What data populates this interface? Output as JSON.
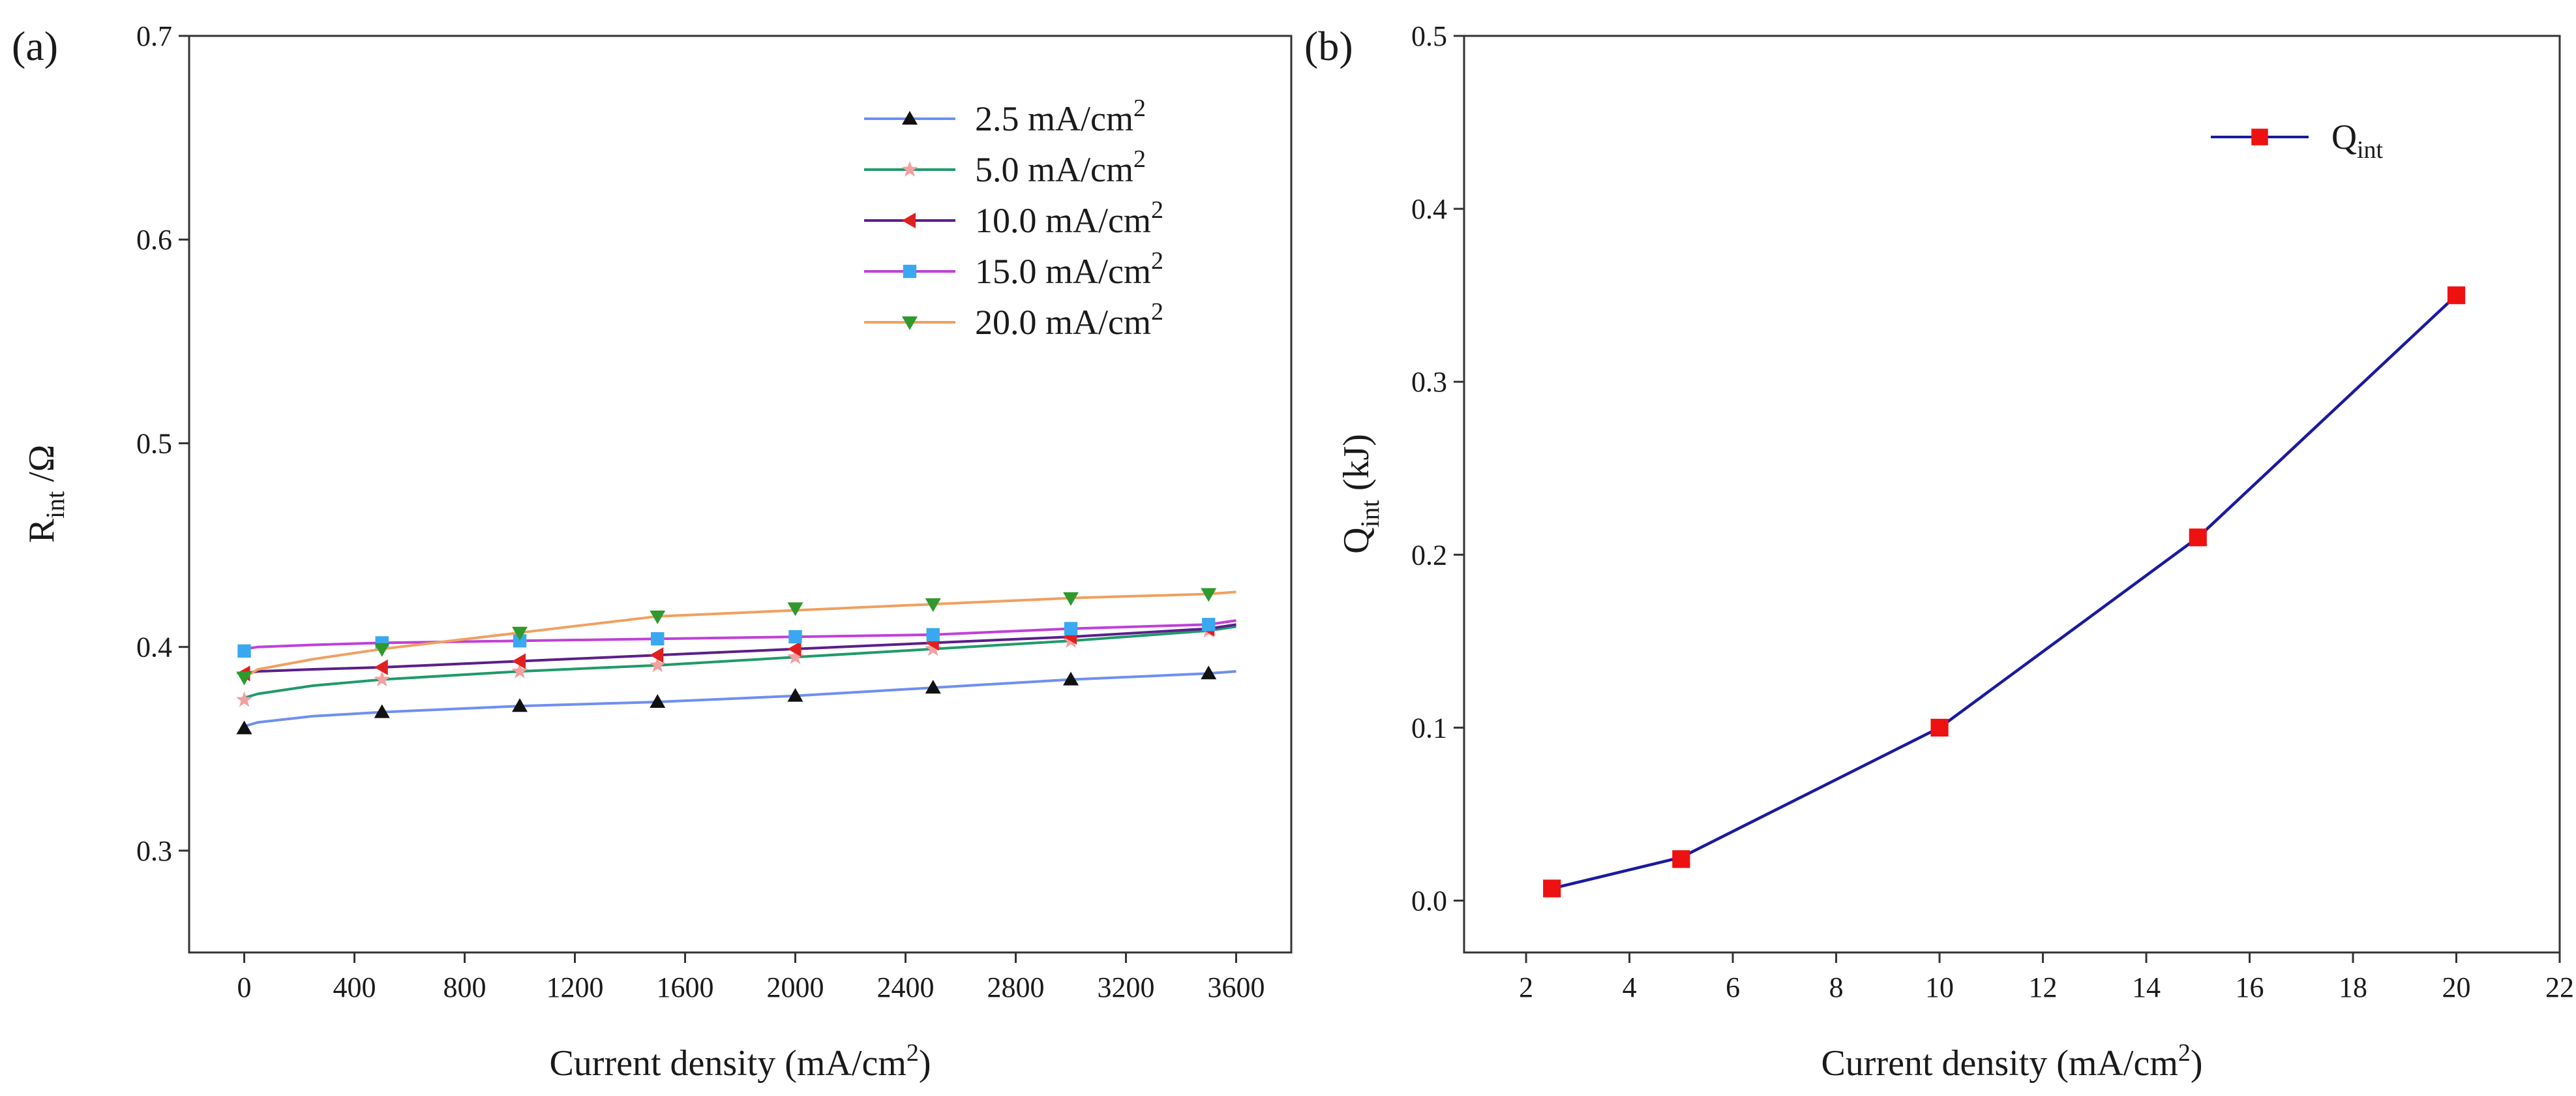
{
  "chart_data": [
    {
      "panel": "(a)",
      "type": "line",
      "xlabel": "Current density (mA/cm",
      "xlabel_sup": "2",
      "xlabel_tail": ")",
      "ylabel_main": "R",
      "ylabel_sub": "int",
      "ylabel_tail": " /Ω",
      "xlim": [
        -200,
        3800
      ],
      "ylim": [
        0.25,
        0.7
      ],
      "xticks": [
        0,
        400,
        800,
        1200,
        1600,
        2000,
        2400,
        2800,
        3200,
        3600
      ],
      "yticks": [
        0.3,
        0.4,
        0.5,
        0.6,
        0.7
      ],
      "legend_position": "top-right",
      "series": [
        {
          "name": "2.5 mA/cm",
          "sup": "2",
          "color": "#6f8ff0",
          "marker": "triangle-up",
          "marker_color": "#111111",
          "curve_x": [
            0,
            50,
            250,
            500,
            1000,
            1500,
            2000,
            2500,
            3000,
            3500,
            3600
          ],
          "curve_y": [
            0.361,
            0.363,
            0.366,
            0.368,
            0.371,
            0.373,
            0.376,
            0.38,
            0.384,
            0.387,
            0.388
          ],
          "points_x": [
            0,
            500,
            1000,
            1500,
            2000,
            2500,
            3000,
            3500
          ],
          "points_y": [
            0.36,
            0.368,
            0.371,
            0.373,
            0.376,
            0.38,
            0.384,
            0.387
          ]
        },
        {
          "name": "5.0 mA/cm",
          "sup": "2",
          "color": "#1f9a6a",
          "marker": "star",
          "marker_color": "#f2a0a0",
          "curve_x": [
            0,
            50,
            250,
            500,
            1000,
            1500,
            2000,
            2500,
            3000,
            3500,
            3600
          ],
          "curve_y": [
            0.375,
            0.377,
            0.381,
            0.384,
            0.388,
            0.391,
            0.395,
            0.399,
            0.403,
            0.408,
            0.41
          ],
          "points_x": [
            0,
            500,
            1000,
            1500,
            2000,
            2500,
            3000,
            3500
          ],
          "points_y": [
            0.374,
            0.384,
            0.388,
            0.391,
            0.395,
            0.399,
            0.403,
            0.408
          ]
        },
        {
          "name": "10.0 mA/cm",
          "sup": "2",
          "color": "#5a1f8a",
          "marker": "triangle-left",
          "marker_color": "#e02020",
          "curve_x": [
            0,
            50,
            250,
            500,
            1000,
            1500,
            2000,
            2500,
            3000,
            3500,
            3600
          ],
          "curve_y": [
            0.387,
            0.388,
            0.389,
            0.39,
            0.393,
            0.396,
            0.399,
            0.402,
            0.405,
            0.409,
            0.411
          ],
          "points_x": [
            0,
            500,
            1000,
            1500,
            2000,
            2500,
            3000,
            3500
          ],
          "points_y": [
            0.387,
            0.39,
            0.393,
            0.396,
            0.399,
            0.402,
            0.405,
            0.409
          ]
        },
        {
          "name": "15.0 mA/cm",
          "sup": "2",
          "color": "#c040d8",
          "marker": "square",
          "marker_color": "#3aa8f0",
          "curve_x": [
            0,
            50,
            250,
            500,
            1000,
            1500,
            2000,
            2500,
            3000,
            3500,
            3600
          ],
          "curve_y": [
            0.399,
            0.4,
            0.401,
            0.402,
            0.403,
            0.404,
            0.405,
            0.406,
            0.409,
            0.411,
            0.413
          ],
          "points_x": [
            0,
            500,
            1000,
            1500,
            2000,
            2500,
            3000,
            3500
          ],
          "points_y": [
            0.398,
            0.402,
            0.403,
            0.404,
            0.405,
            0.406,
            0.409,
            0.411
          ]
        },
        {
          "name": "20.0 mA/cm",
          "sup": "2",
          "color": "#f0a060",
          "marker": "triangle-down",
          "marker_color": "#2e9a2e",
          "curve_x": [
            0,
            50,
            250,
            500,
            1000,
            1500,
            2000,
            2500,
            3000,
            3500,
            3600
          ],
          "curve_y": [
            0.385,
            0.389,
            0.394,
            0.399,
            0.407,
            0.415,
            0.418,
            0.421,
            0.424,
            0.426,
            0.427
          ],
          "points_x": [
            0,
            500,
            1000,
            1500,
            2000,
            2500,
            3000,
            3500
          ],
          "points_y": [
            0.385,
            0.399,
            0.407,
            0.415,
            0.419,
            0.421,
            0.424,
            0.426
          ]
        }
      ]
    },
    {
      "panel": "(b)",
      "type": "line",
      "xlabel": "Current density (mA/cm",
      "xlabel_sup": "2",
      "xlabel_tail": ")",
      "ylabel_main": "Q",
      "ylabel_sub": "int",
      "ylabel_tail": " (kJ)",
      "xlim": [
        0.8,
        22
      ],
      "ylim": [
        -0.03,
        0.5
      ],
      "xticks": [
        2,
        4,
        6,
        8,
        10,
        12,
        14,
        16,
        18,
        20,
        22
      ],
      "yticks": [
        0.0,
        0.1,
        0.2,
        0.3,
        0.4,
        0.5
      ],
      "ytick_labels": [
        "0.0",
        "0.1",
        "0.2",
        "0.3",
        "0.4",
        "0.5"
      ],
      "legend_position": "top-right",
      "series": [
        {
          "name": "Q",
          "sub": "int",
          "color": "#1a1aa0",
          "marker": "square",
          "marker_color": "#ee1111",
          "curve_x": [
            2.5,
            5,
            10,
            15,
            20
          ],
          "curve_y": [
            0.007,
            0.025,
            0.1,
            0.21,
            0.35
          ],
          "points_x": [
            2.5,
            5,
            10,
            15,
            20
          ],
          "points_y": [
            0.007,
            0.024,
            0.1,
            0.21,
            0.35
          ]
        }
      ]
    }
  ]
}
